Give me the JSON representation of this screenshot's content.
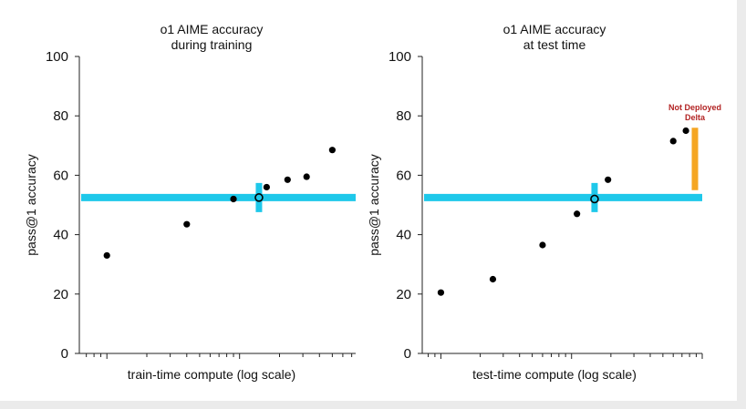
{
  "colors": {
    "baseline": "#1ec8ea",
    "delta": "#f5a623",
    "annotation": "#b22222",
    "points": "#000000"
  },
  "chart_data": [
    {
      "type": "scatter",
      "title_line1": "o1 AIME accuracy",
      "title_line2": "during training",
      "xlabel": "train-time compute (log scale)",
      "ylabel": "pass@1 accuracy",
      "xscale": "log",
      "ylim": [
        0,
        100
      ],
      "yticks": [
        "0",
        "20",
        "40",
        "60",
        "80",
        "100"
      ],
      "grid": false,
      "points": [
        {
          "x": 1,
          "y": 33
        },
        {
          "x": 4,
          "y": 43.5
        },
        {
          "x": 9,
          "y": 52
        },
        {
          "x": 14,
          "y": 52.5
        },
        {
          "x": 16,
          "y": 56
        },
        {
          "x": 23,
          "y": 58.5
        },
        {
          "x": 32,
          "y": 59.5
        },
        {
          "x": 50,
          "y": 68.5
        }
      ],
      "baseline_y": 52.5,
      "highlight_point": {
        "x": 14,
        "y": 52.5
      }
    },
    {
      "type": "scatter",
      "title_line1": "o1 AIME accuracy",
      "title_line2": "at test time",
      "xlabel": "test-time compute (log scale)",
      "ylabel": "pass@1 accuracy",
      "xscale": "log",
      "ylim": [
        0,
        100
      ],
      "yticks": [
        "0",
        "20",
        "40",
        "60",
        "80",
        "100"
      ],
      "grid": false,
      "points": [
        {
          "x": 1,
          "y": 20.5
        },
        {
          "x": 2.5,
          "y": 25
        },
        {
          "x": 6,
          "y": 36.5
        },
        {
          "x": 11,
          "y": 47
        },
        {
          "x": 15,
          "y": 52
        },
        {
          "x": 19,
          "y": 58.5
        },
        {
          "x": 60,
          "y": 71.5
        },
        {
          "x": 75,
          "y": 75
        }
      ],
      "baseline_y": 52.5,
      "highlight_point": {
        "x": 15,
        "y": 52
      },
      "delta_bar": {
        "from": 55,
        "to": 76
      },
      "annotation": "Not Deployed Delta",
      "annotation_line1": "Not Deployed",
      "annotation_line2": "Delta"
    }
  ]
}
